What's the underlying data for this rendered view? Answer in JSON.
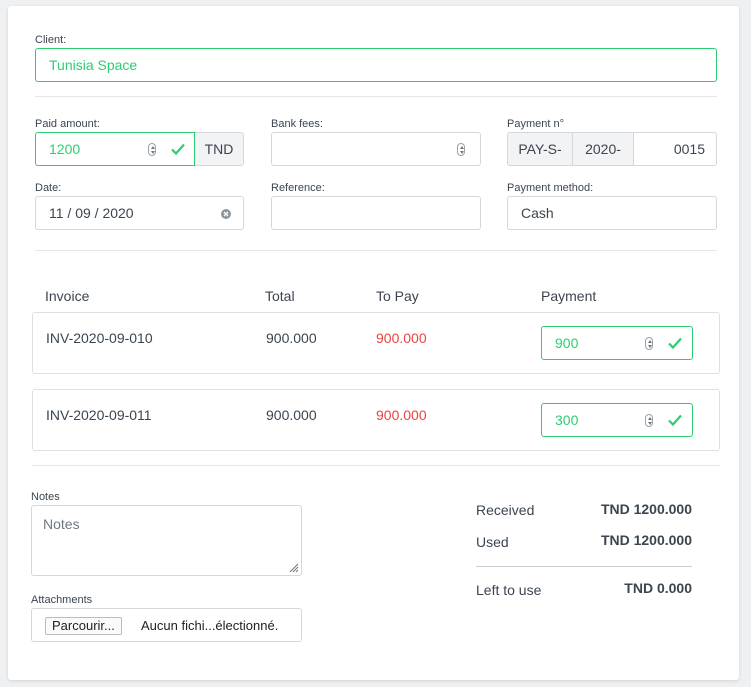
{
  "client": {
    "label": "Client:",
    "value": "Tunisia Space"
  },
  "paid_amount": {
    "label": "Paid amount:",
    "value": "1200",
    "currency": "TND"
  },
  "bank_fees": {
    "label": "Bank fees:",
    "value": ""
  },
  "payment_no": {
    "label": "Payment n°",
    "prefix": "PAY-S-",
    "year": "2020-",
    "number": "0015"
  },
  "date": {
    "label": "Date:",
    "value": "11 / 09 / 2020"
  },
  "reference": {
    "label": "Reference:",
    "value": ""
  },
  "payment_method": {
    "label": "Payment method:",
    "value": "Cash"
  },
  "table": {
    "headers": {
      "invoice": "Invoice",
      "total": "Total",
      "to_pay": "To Pay",
      "payment": "Payment"
    },
    "rows": [
      {
        "invoice": "INV-2020-09-010",
        "total": "900.000",
        "to_pay": "900.000",
        "payment": "900"
      },
      {
        "invoice": "INV-2020-09-011",
        "total": "900.000",
        "to_pay": "900.000",
        "payment": "300"
      }
    ]
  },
  "notes": {
    "label": "Notes",
    "placeholder": "Notes"
  },
  "attachments": {
    "label": "Attachments",
    "button": "Parcourir...",
    "status": "Aucun fichi...électionné."
  },
  "summary": {
    "received_label": "Received",
    "received_value": "TND 1200.000",
    "used_label": "Used",
    "used_value": "TND 1200.000",
    "left_label": "Left to use",
    "left_value": "TND 0.000"
  },
  "colors": {
    "valid": "#2ecc71",
    "danger": "#ea4444",
    "border": "#d4d8dc"
  }
}
